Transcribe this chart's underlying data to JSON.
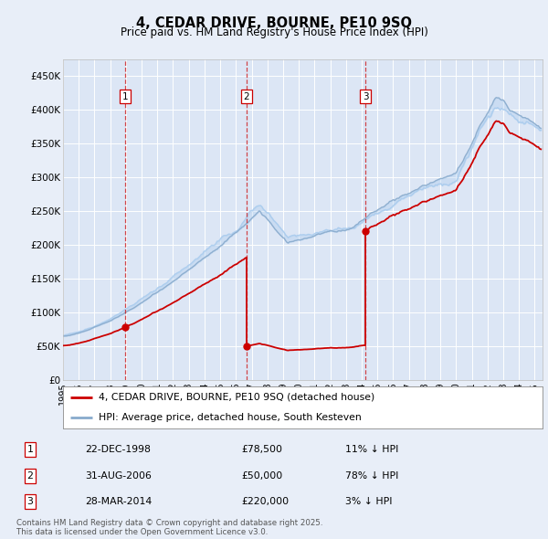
{
  "title": "4, CEDAR DRIVE, BOURNE, PE10 9SQ",
  "subtitle": "Price paid vs. HM Land Registry's House Price Index (HPI)",
  "legend_line1": "4, CEDAR DRIVE, BOURNE, PE10 9SQ (detached house)",
  "legend_line2": "HPI: Average price, detached house, South Kesteven",
  "sale_dates": [
    "22-DEC-1998",
    "31-AUG-2006",
    "28-MAR-2014"
  ],
  "sale_prices": [
    78500,
    50000,
    220000
  ],
  "sale_pct": [
    "11% ↓ HPI",
    "78% ↓ HPI",
    "3% ↓ HPI"
  ],
  "sale_years": [
    1998.97,
    2006.67,
    2014.25
  ],
  "ylabel_ticks": [
    "£0",
    "£50K",
    "£100K",
    "£150K",
    "£200K",
    "£250K",
    "£300K",
    "£350K",
    "£400K",
    "£450K"
  ],
  "ytick_values": [
    0,
    50000,
    100000,
    150000,
    200000,
    250000,
    300000,
    350000,
    400000,
    450000
  ],
  "xmin": 1995,
  "xmax": 2025.5,
  "ymin": 0,
  "ymax": 475000,
  "background_color": "#e8eef8",
  "plot_bg_color": "#dce6f5",
  "grid_color": "#ffffff",
  "red_line_color": "#cc0000",
  "blue_line_color": "#88aacc",
  "blue_line_color2": "#aaccee",
  "sale_marker_color": "#cc0000",
  "footnote": "Contains HM Land Registry data © Crown copyright and database right 2025.\nThis data is licensed under the Open Government Licence v3.0."
}
